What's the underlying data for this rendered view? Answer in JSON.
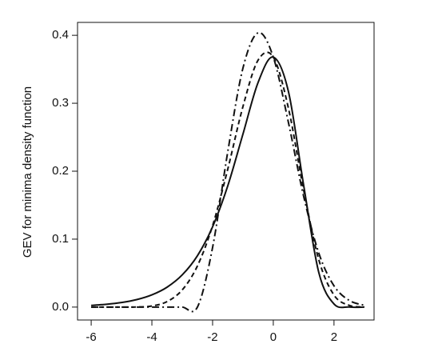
{
  "chart_data": {
    "type": "line",
    "y_label": "GEV for minima density function",
    "x": [
      -6,
      -5.5,
      -5,
      -4.5,
      -4,
      -3.5,
      -3,
      -2.5,
      -2,
      -1.5,
      -1,
      -0.5,
      0,
      0.5,
      1,
      1.5,
      2,
      2.5,
      3
    ],
    "series": [
      {
        "color": "#111111",
        "linestyle": "solid",
        "values": [
          0.0025,
          0.0041,
          0.0067,
          0.011,
          0.018,
          0.0293,
          0.0474,
          0.0756,
          0.1182,
          0.1785,
          0.2546,
          0.3307,
          0.3679,
          0.317,
          0.1794,
          0.0507,
          0.0046,
          0.0001,
          0
        ]
      },
      {
        "color": "#111111",
        "linestyle": "dashed",
        "values": [
          0,
          0,
          0,
          0.0001,
          0.0016,
          0.0081,
          0.0253,
          0.0606,
          0.1199,
          0.203,
          0.2951,
          0.3635,
          0.3679,
          0.2925,
          0.1723,
          0.0697,
          0.0177,
          0.0026,
          0.0002
        ]
      },
      {
        "color": "#111111",
        "linestyle": "dashdot",
        "values": [
          0,
          0,
          0,
          0,
          0,
          0,
          0,
          0,
          0.0878,
          0.2287,
          0.3517,
          0.4037,
          0.3679,
          0.2714,
          0.163,
          0.0794,
          0.0313,
          0.0099,
          0.0025
        ]
      }
    ],
    "xlim": [
      -6.45,
      3.32
    ],
    "xticks": [
      -6,
      -4,
      -2,
      0,
      2
    ],
    "ylim": [
      -0.019,
      0.419
    ],
    "yticks": [
      {
        "value": 0,
        "label": "0.0"
      },
      0.1,
      0.2,
      0.3,
      0.4
    ],
    "grid": false
  }
}
